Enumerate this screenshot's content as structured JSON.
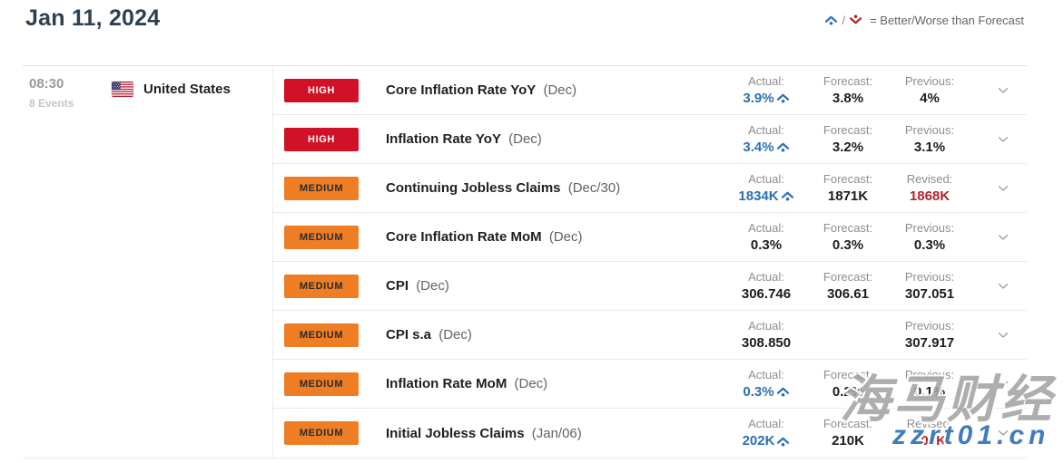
{
  "page": {
    "date": "Jan 11, 2024"
  },
  "legend": {
    "better_icon": "caret-up-dot-icon",
    "worse_icon": "caret-down-dot-icon",
    "separator": "/",
    "text": "= Better/Worse than Forecast"
  },
  "colors": {
    "high_badge": "#d01127",
    "medium_badge": "#ef7d23",
    "better_blue": "#2b6fb4",
    "revised_red": "#b1232b"
  },
  "icons": {
    "flag": "us-flag-icon",
    "expand": "chevron-down-icon",
    "better": "caret-up-dot-icon",
    "worse": "caret-down-dot-icon"
  },
  "group": {
    "time": "08:30",
    "events_count": "8 Events",
    "country": "United States"
  },
  "events": [
    {
      "importance": "HIGH",
      "name": "Core Inflation Rate YoY",
      "period": "(Dec)",
      "actual_label": "Actual:",
      "actual": "3.9%",
      "actual_trend": "up",
      "forecast_label": "Forecast:",
      "forecast": "3.8%",
      "third_label": "Previous:",
      "third": "4%",
      "third_revised": false
    },
    {
      "importance": "HIGH",
      "name": "Inflation Rate YoY",
      "period": "(Dec)",
      "actual_label": "Actual:",
      "actual": "3.4%",
      "actual_trend": "up",
      "forecast_label": "Forecast:",
      "forecast": "3.2%",
      "third_label": "Previous:",
      "third": "3.1%",
      "third_revised": false
    },
    {
      "importance": "MEDIUM",
      "name": "Continuing Jobless Claims",
      "period": "(Dec/30)",
      "actual_label": "Actual:",
      "actual": "1834K",
      "actual_trend": "up",
      "forecast_label": "Forecast:",
      "forecast": "1871K",
      "third_label": "Revised:",
      "third": "1868K",
      "third_revised": true
    },
    {
      "importance": "MEDIUM",
      "name": "Core Inflation Rate MoM",
      "period": "(Dec)",
      "actual_label": "Actual:",
      "actual": "0.3%",
      "actual_trend": "",
      "forecast_label": "Forecast:",
      "forecast": "0.3%",
      "third_label": "Previous:",
      "third": "0.3%",
      "third_revised": false
    },
    {
      "importance": "MEDIUM",
      "name": "CPI",
      "period": "(Dec)",
      "actual_label": "Actual:",
      "actual": "306.746",
      "actual_trend": "",
      "forecast_label": "Forecast:",
      "forecast": "306.61",
      "third_label": "Previous:",
      "third": "307.051",
      "third_revised": false
    },
    {
      "importance": "MEDIUM",
      "name": "CPI s.a",
      "period": "(Dec)",
      "actual_label": "Actual:",
      "actual": "308.850",
      "actual_trend": "",
      "forecast_label": "",
      "forecast": "",
      "third_label": "Previous:",
      "third": "307.917",
      "third_revised": false
    },
    {
      "importance": "MEDIUM",
      "name": "Inflation Rate MoM",
      "period": "(Dec)",
      "actual_label": "Actual:",
      "actual": "0.3%",
      "actual_trend": "up",
      "forecast_label": "Forecast:",
      "forecast": "0.2%",
      "third_label": "Previous:",
      "third": "0.1%",
      "third_revised": false
    },
    {
      "importance": "MEDIUM",
      "name": "Initial Jobless Claims",
      "period": "(Jan/06)",
      "actual_label": "Actual:",
      "actual": "202K",
      "actual_trend": "up",
      "forecast_label": "Forecast:",
      "forecast": "210K",
      "third_label": "Revised:",
      "third": "203K",
      "third_revised": true
    }
  ],
  "watermark": {
    "title": "海马财经",
    "site": "zzrt01.cn"
  }
}
